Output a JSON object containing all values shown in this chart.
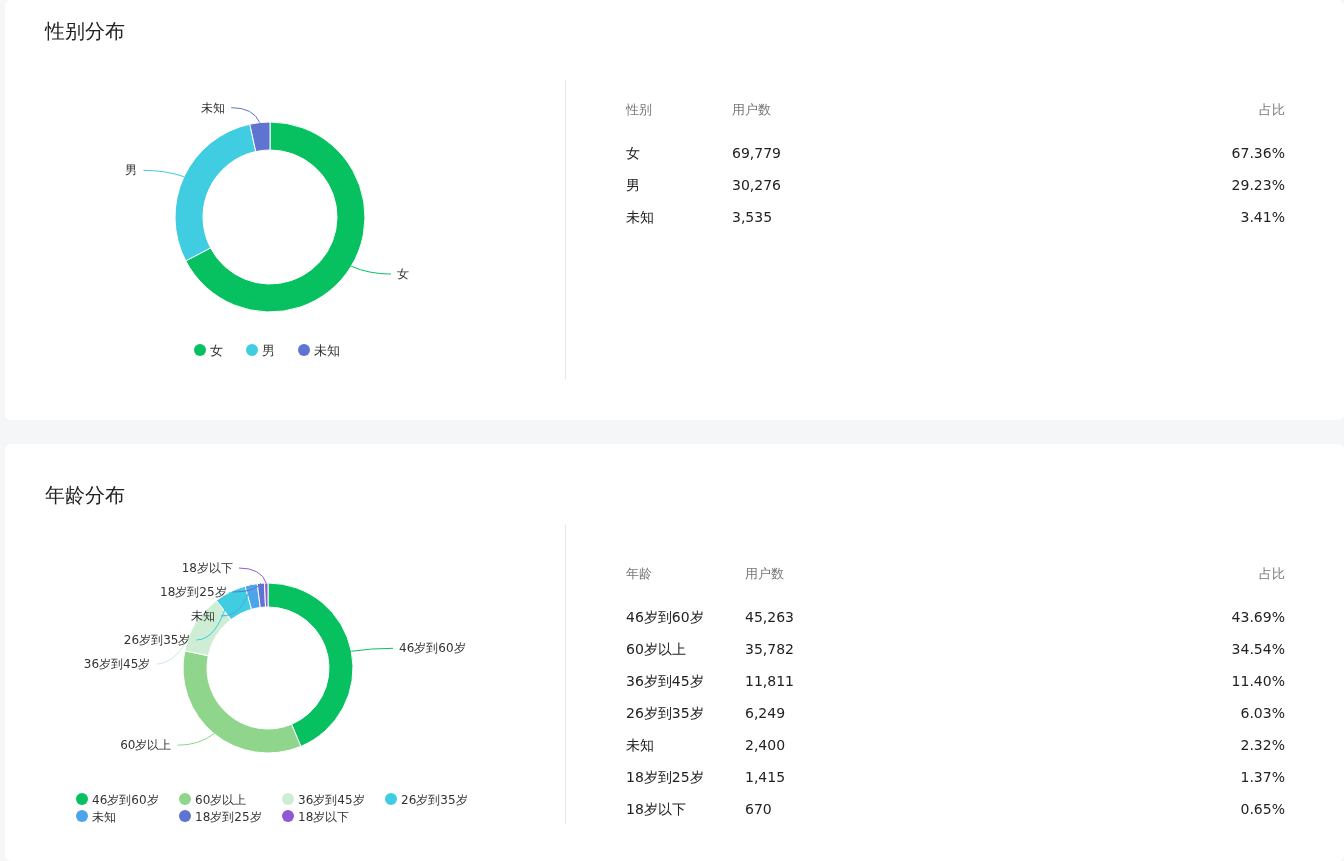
{
  "chart_data": [
    {
      "type": "donut",
      "title": "性别分布",
      "categories": [
        "女",
        "男",
        "未知"
      ],
      "values": [
        67.36,
        29.23,
        3.41
      ],
      "colors": [
        "#07c160",
        "#40cde1",
        "#5f73d0"
      ],
      "legend": "bottom"
    },
    {
      "type": "other",
      "annotations": [
        "性别",
        "用户数",
        "占比",
        "女",
        "69,779",
        "67.36%",
        "男",
        "30,276",
        "29.23%",
        "未知",
        "3,535",
        "3.41%"
      ]
    },
    {
      "type": "donut",
      "title": "年龄分布",
      "categories": [
        "46岁到60岁",
        "60岁以上",
        "36岁到45岁",
        "26岁到35岁",
        "未知",
        "18岁到25岁",
        "18岁以下"
      ],
      "values": [
        43.69,
        34.54,
        11.4,
        6.03,
        2.32,
        1.37,
        0.65
      ],
      "colors": [
        "#07c160",
        "#8fd68c",
        "#cdeed4",
        "#40cde1",
        "#4ea4ea",
        "#5f73d0",
        "#8e5ad3"
      ],
      "legend": "bottom"
    },
    {
      "type": "other",
      "annotations": [
        "年龄",
        "用户数",
        "占比",
        "46岁到60岁",
        "45,263",
        "43.69%",
        "60岁以上",
        "35,782",
        "34.54%",
        "36岁到45岁",
        "11,811",
        "11.40%",
        "26岁到35岁",
        "6,249",
        "6.03%",
        "未知",
        "2,400",
        "2.32%",
        "18岁到25岁",
        "1,415",
        "1.37%",
        "18岁以下",
        "670",
        "0.65%"
      ]
    }
  ]
}
